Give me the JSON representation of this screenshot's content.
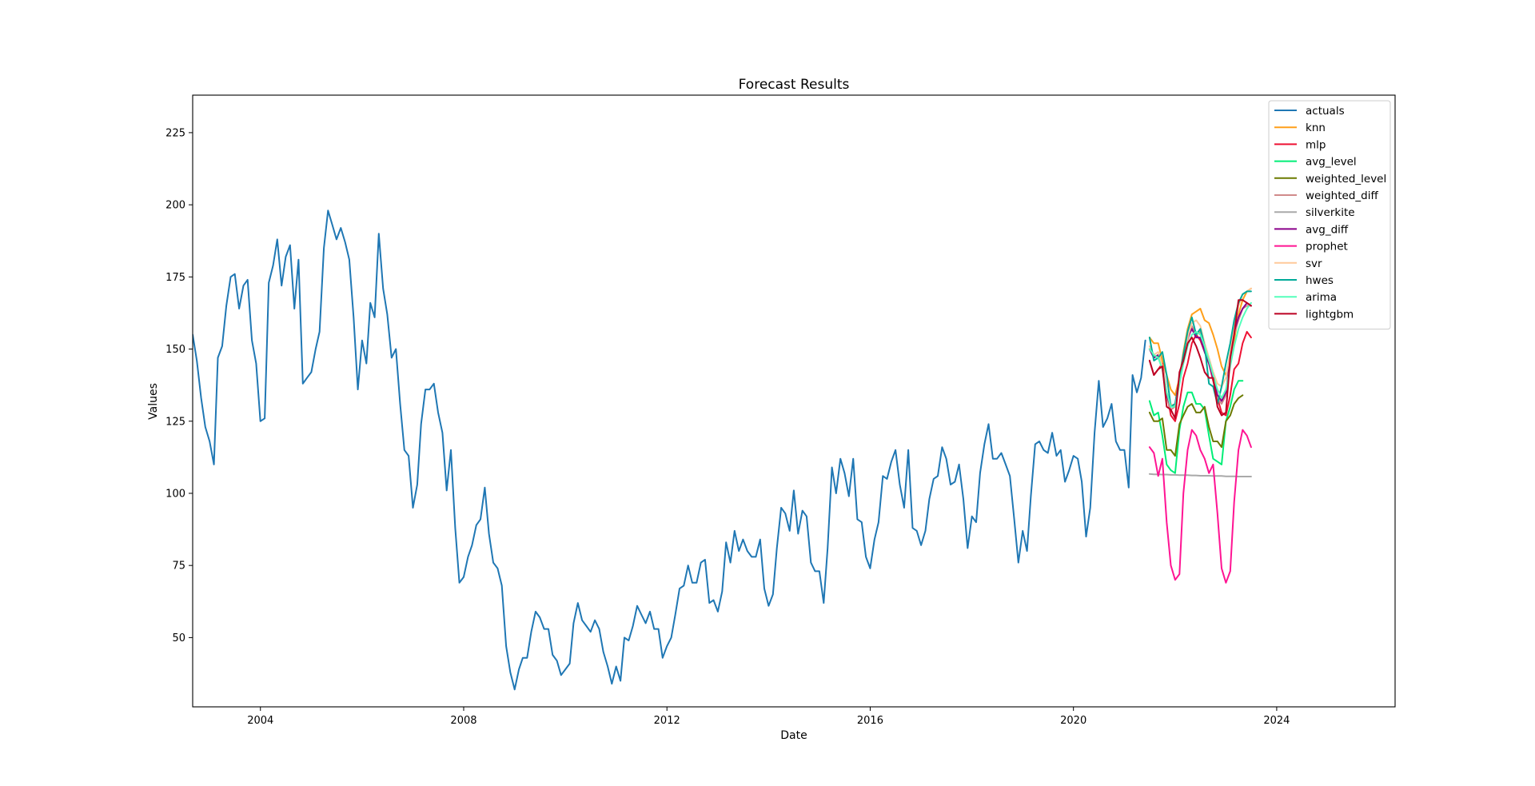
{
  "chart_data": {
    "type": "line",
    "title": "Forecast Results",
    "xlabel": "Date",
    "ylabel": "Values",
    "xlim": [
      "2002-09-01",
      "2026-05-01"
    ],
    "ylim": [
      26,
      238
    ],
    "xticks": [
      "2004-01-01",
      "2008-01-01",
      "2012-01-01",
      "2016-01-01",
      "2020-01-01",
      "2024-01-01"
    ],
    "xtick_labels": [
      "2004",
      "2008",
      "2012",
      "2016",
      "2020",
      "2024"
    ],
    "yticks": [
      50,
      75,
      100,
      125,
      150,
      175,
      200,
      225
    ],
    "ytick_labels": [
      "50",
      "75",
      "100",
      "125",
      "150",
      "175",
      "200",
      "225"
    ],
    "grid": false,
    "legend_position": "top-right",
    "series": [
      {
        "name": "actuals",
        "color": "#1f77b4",
        "width": 2,
        "x": [
          "2002-09-01",
          "2002-10-01",
          "2002-11-01",
          "2002-12-01",
          "2003-01-01",
          "2003-02-01",
          "2003-03-01",
          "2003-04-01",
          "2003-05-01",
          "2003-06-01",
          "2003-07-01",
          "2003-08-01",
          "2003-09-01",
          "2003-10-01",
          "2003-11-01",
          "2003-12-01",
          "2004-01-01",
          "2004-02-01",
          "2004-03-01",
          "2004-04-01",
          "2004-05-01",
          "2004-06-01",
          "2004-07-01",
          "2004-08-01",
          "2004-09-01",
          "2004-10-01",
          "2004-11-01",
          "2004-12-01",
          "2005-01-01",
          "2005-02-01",
          "2005-03-01",
          "2005-04-01",
          "2005-05-01",
          "2005-06-01",
          "2005-07-01",
          "2005-08-01",
          "2005-09-01",
          "2005-10-01",
          "2005-11-01",
          "2005-12-01",
          "2006-01-01",
          "2006-02-01",
          "2006-03-01",
          "2006-04-01",
          "2006-05-01",
          "2006-06-01",
          "2006-07-01",
          "2006-08-01",
          "2006-09-01",
          "2006-10-01",
          "2006-11-01",
          "2006-12-01",
          "2007-01-01",
          "2007-02-01",
          "2007-03-01",
          "2007-04-01",
          "2007-05-01",
          "2007-06-01",
          "2007-07-01",
          "2007-08-01",
          "2007-09-01",
          "2007-10-01",
          "2007-11-01",
          "2007-12-01",
          "2008-01-01",
          "2008-02-01",
          "2008-03-01",
          "2008-04-01",
          "2008-05-01",
          "2008-06-01",
          "2008-07-01",
          "2008-08-01",
          "2008-09-01",
          "2008-10-01",
          "2008-11-01",
          "2008-12-01",
          "2009-01-01",
          "2009-02-01",
          "2009-03-01",
          "2009-04-01",
          "2009-05-01",
          "2009-06-01",
          "2009-07-01",
          "2009-08-01",
          "2009-09-01",
          "2009-10-01",
          "2009-11-01",
          "2009-12-01",
          "2010-01-01",
          "2010-02-01",
          "2010-03-01",
          "2010-04-01",
          "2010-05-01",
          "2010-06-01",
          "2010-07-01",
          "2010-08-01",
          "2010-09-01",
          "2010-10-01",
          "2010-11-01",
          "2010-12-01",
          "2011-01-01",
          "2011-02-01",
          "2011-03-01",
          "2011-04-01",
          "2011-05-01",
          "2011-06-01",
          "2011-07-01",
          "2011-08-01",
          "2011-09-01",
          "2011-10-01",
          "2011-11-01",
          "2011-12-01",
          "2012-01-01",
          "2012-02-01",
          "2012-03-01",
          "2012-04-01",
          "2012-05-01",
          "2012-06-01",
          "2012-07-01",
          "2012-08-01",
          "2012-09-01",
          "2012-10-01",
          "2012-11-01",
          "2012-12-01",
          "2013-01-01",
          "2013-02-01",
          "2013-03-01",
          "2013-04-01",
          "2013-05-01",
          "2013-06-01",
          "2013-07-01",
          "2013-08-01",
          "2013-09-01",
          "2013-10-01",
          "2013-11-01",
          "2013-12-01",
          "2014-01-01",
          "2014-02-01",
          "2014-03-01",
          "2014-04-01",
          "2014-05-01",
          "2014-06-01",
          "2014-07-01",
          "2014-08-01",
          "2014-09-01",
          "2014-10-01",
          "2014-11-01",
          "2014-12-01",
          "2015-01-01",
          "2015-02-01",
          "2015-03-01",
          "2015-04-01",
          "2015-05-01",
          "2015-06-01",
          "2015-07-01",
          "2015-08-01",
          "2015-09-01",
          "2015-10-01",
          "2015-11-01",
          "2015-12-01",
          "2016-01-01",
          "2016-02-01",
          "2016-03-01",
          "2016-04-01",
          "2016-05-01",
          "2016-06-01",
          "2016-07-01",
          "2016-08-01",
          "2016-09-01",
          "2016-10-01",
          "2016-11-01",
          "2016-12-01",
          "2017-01-01",
          "2017-02-01",
          "2017-03-01",
          "2017-04-01",
          "2017-05-01",
          "2017-06-01",
          "2017-07-01",
          "2017-08-01",
          "2017-09-01",
          "2017-10-01",
          "2017-11-01",
          "2017-12-01",
          "2018-01-01",
          "2018-02-01",
          "2018-03-01",
          "2018-04-01",
          "2018-05-01",
          "2018-06-01",
          "2018-07-01",
          "2018-08-01",
          "2018-09-01",
          "2018-10-01",
          "2018-11-01",
          "2018-12-01",
          "2019-01-01",
          "2019-02-01",
          "2019-03-01",
          "2019-04-01",
          "2019-05-01",
          "2019-06-01",
          "2019-07-01",
          "2019-08-01",
          "2019-09-01",
          "2019-10-01",
          "2019-11-01",
          "2019-12-01",
          "2020-01-01",
          "2020-02-01",
          "2020-03-01",
          "2020-04-01",
          "2020-05-01",
          "2020-06-01",
          "2020-07-01",
          "2020-08-01",
          "2020-09-01",
          "2020-10-01",
          "2020-11-01",
          "2020-12-01",
          "2021-01-01",
          "2021-02-01",
          "2021-03-01",
          "2021-04-01",
          "2021-05-01",
          "2021-06-01"
        ],
        "y": [
          155,
          146,
          133,
          123,
          118,
          110,
          147,
          151,
          165,
          175,
          176,
          164,
          172,
          174,
          153,
          145,
          125,
          126,
          173,
          179,
          188,
          172,
          182,
          186,
          164,
          181,
          138,
          140,
          142,
          150,
          156,
          185,
          198,
          193,
          188,
          192,
          187,
          181,
          161,
          136,
          153,
          145,
          166,
          161,
          190,
          171,
          162,
          147,
          150,
          131,
          115,
          113,
          95,
          103,
          124,
          136,
          136,
          138,
          128,
          121,
          101,
          115,
          88,
          69,
          71,
          78,
          82,
          89,
          91,
          102,
          86,
          76,
          74,
          68,
          47,
          38,
          32,
          39,
          43,
          43,
          52,
          59,
          57,
          53,
          53,
          44,
          42,
          37,
          39,
          41,
          55,
          62,
          56,
          54,
          52,
          56,
          53,
          45,
          40,
          34,
          40,
          35,
          50,
          49,
          54,
          61,
          58,
          55,
          59,
          53,
          53,
          43,
          47,
          50,
          58,
          67,
          68,
          75,
          69,
          69,
          76,
          77,
          62,
          63,
          59,
          66,
          83,
          76,
          87,
          80,
          84,
          80,
          78,
          78,
          84,
          67,
          61,
          65,
          81,
          95,
          93,
          87,
          101,
          86,
          94,
          92,
          76,
          73,
          73,
          62,
          81,
          109,
          100,
          112,
          107,
          99,
          112,
          91,
          90,
          78,
          74,
          84,
          90,
          106,
          105,
          111,
          115,
          103,
          95,
          115,
          88,
          87,
          82,
          87,
          98,
          105,
          106,
          116,
          112,
          103,
          104,
          110,
          98,
          81,
          92,
          90,
          107,
          117,
          124,
          112,
          112,
          114,
          110,
          106,
          91,
          76,
          87,
          80,
          99,
          117,
          118,
          115,
          114,
          121,
          113,
          115,
          104,
          108,
          113,
          112,
          104,
          85,
          95,
          121,
          139,
          123,
          126,
          131,
          118,
          115,
          115,
          102,
          141,
          135,
          140,
          153
        ]
      },
      {
        "name": "knn",
        "color": "#ff9f1a",
        "width": 2,
        "y": [
          154,
          152,
          152,
          146,
          141,
          136,
          134,
          140,
          149,
          157,
          162,
          163,
          164,
          160,
          159,
          155,
          150,
          144,
          141,
          145,
          153,
          162,
          167,
          170,
          171
        ]
      },
      {
        "name": "mlp",
        "color": "#ee1133",
        "width": 2,
        "y": [
          146,
          141,
          143,
          145,
          135,
          127,
          125,
          131,
          140,
          145,
          152,
          155,
          153,
          149,
          145,
          139,
          133,
          128,
          127,
          134,
          143,
          145,
          152,
          156,
          154
        ]
      },
      {
        "name": "avg_level",
        "color": "#00ee77",
        "width": 2,
        "y": [
          132,
          127,
          128,
          120,
          110,
          108,
          107,
          122,
          130,
          135,
          135,
          131,
          131,
          129,
          120,
          112,
          111,
          110,
          125,
          130,
          136,
          139,
          139,
          null,
          null
        ]
      },
      {
        "name": "weighted_level",
        "color": "#6b7a00",
        "width": 2,
        "y": [
          128,
          125,
          125,
          126,
          115,
          115,
          113,
          124,
          127,
          130,
          131,
          128,
          128,
          130,
          123,
          118,
          118,
          116,
          125,
          127,
          131,
          133,
          134,
          null,
          null
        ]
      },
      {
        "name": "weighted_diff",
        "color": "#d08a8a",
        "width": 2,
        "y": [
          150,
          147,
          148,
          143,
          133,
          129,
          130,
          139,
          147,
          153,
          158,
          155,
          156,
          149,
          145,
          140,
          133,
          131,
          134,
          146,
          155,
          160,
          164,
          165,
          165
        ]
      },
      {
        "name": "silverkite",
        "color": "#a9a9a9",
        "width": 2,
        "y": [
          106.7,
          106.6,
          106.6,
          106.5,
          106.5,
          106.4,
          106.4,
          106.3,
          106.3,
          106.3,
          106.2,
          106.2,
          106.1,
          106.1,
          106.1,
          106.0,
          106.0,
          106.0,
          105.9,
          105.9,
          105.9,
          105.8,
          105.8,
          105.8,
          105.8
        ]
      },
      {
        "name": "avg_diff",
        "color": "#8a008a",
        "width": 2,
        "y": [
          150,
          147,
          148,
          144,
          134,
          130,
          131,
          140,
          148,
          154,
          157,
          154,
          154,
          149,
          145,
          140,
          134,
          132,
          135,
          147,
          156,
          161,
          164,
          166,
          165
        ]
      },
      {
        "name": "prophet",
        "color": "#ff1493",
        "width": 2,
        "y": [
          116,
          114,
          106,
          112,
          90,
          75,
          70,
          72,
          100,
          115,
          122,
          120,
          115,
          112,
          107,
          110,
          93,
          74,
          69,
          73,
          97,
          115,
          122,
          120,
          116
        ]
      },
      {
        "name": "svr",
        "color": "#ffc99a",
        "width": 2,
        "y": [
          151,
          148,
          149,
          144,
          135,
          131,
          130,
          139,
          147,
          154,
          159,
          160,
          158,
          152,
          147,
          142,
          138,
          137,
          140,
          149,
          158,
          165,
          169,
          170,
          171
        ]
      },
      {
        "name": "hwes",
        "color": "#00aa99",
        "width": 2,
        "y": [
          154,
          146,
          147,
          149,
          141,
          130,
          131,
          139,
          148,
          156,
          161,
          155,
          157,
          151,
          138,
          137,
          131,
          137,
          145,
          152,
          160,
          166,
          169,
          170,
          170
        ]
      },
      {
        "name": "arima",
        "color": "#55ffbb",
        "width": 2,
        "y": [
          150,
          148,
          147,
          143,
          135,
          130,
          130,
          138,
          145,
          151,
          155,
          156,
          155,
          151,
          146,
          141,
          136,
          133,
          136,
          144,
          151,
          157,
          161,
          164,
          166
        ]
      },
      {
        "name": "lightgbm",
        "color": "#bb0022",
        "width": 2,
        "y": [
          146,
          141,
          143,
          144,
          130,
          129,
          126,
          142,
          146,
          152,
          154,
          151,
          147,
          142,
          140,
          140,
          130,
          127,
          128,
          147,
          155,
          167,
          167,
          166,
          165
        ]
      }
    ],
    "forecast_x": [
      "2021-07-01",
      "2021-08-01",
      "2021-09-01",
      "2021-10-01",
      "2021-11-01",
      "2021-12-01",
      "2022-01-01",
      "2022-02-01",
      "2022-03-01",
      "2022-04-01",
      "2022-05-01",
      "2022-06-01",
      "2022-07-01",
      "2022-08-01",
      "2022-09-01",
      "2022-10-01",
      "2022-11-01",
      "2022-12-01",
      "2023-01-01",
      "2023-02-01",
      "2023-03-01",
      "2023-04-01",
      "2023-05-01",
      "2023-06-01",
      "2023-07-01"
    ]
  }
}
